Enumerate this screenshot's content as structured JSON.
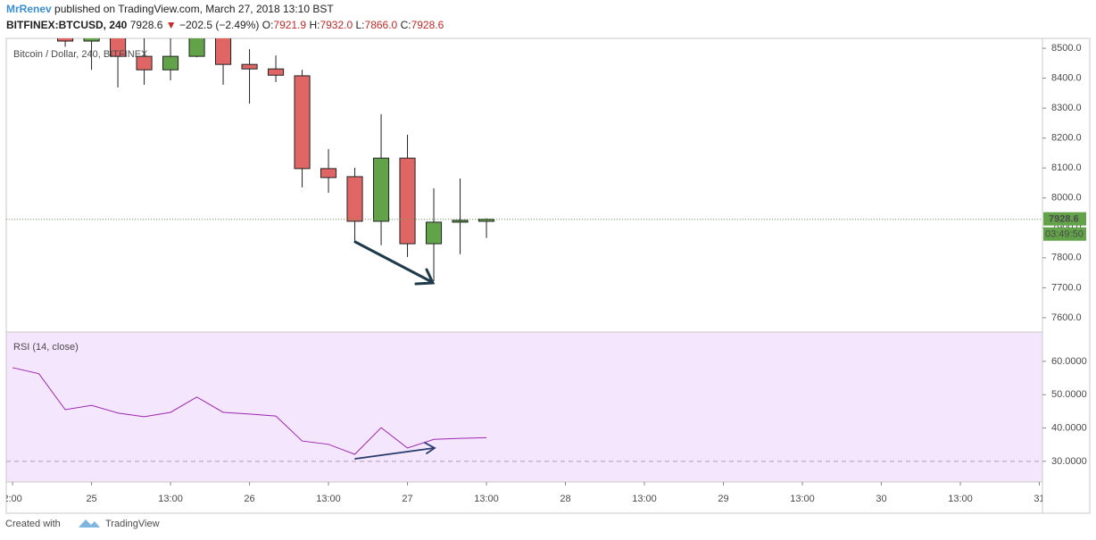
{
  "header": {
    "author": "MrRenev",
    "published": "published on TradingView.com, March 27, 2018 13:10 BST",
    "symbol": "BITFINEX:BTCUSD, 240",
    "last": "7928.6",
    "direction": "▼",
    "change": "−202.5 (−2.49%)",
    "open_label": "O:",
    "open": "7921.9",
    "high_label": "H:",
    "high": "7932.0",
    "low_label": "L:",
    "low": "7866.0",
    "close_label": "C:",
    "close": "7928.6"
  },
  "footer": {
    "created": "Created with",
    "brand": "TradingView"
  },
  "chart_data": [
    {
      "type": "candlestick",
      "title": "Bitcoin / Dollar, 240, BITFINEX",
      "x": [
        0,
        1,
        2,
        3,
        4,
        5,
        6,
        7,
        8,
        9,
        10,
        11,
        12,
        13,
        14,
        15,
        16
      ],
      "open": [
        8560,
        8524,
        8545,
        8473,
        8428,
        8473,
        8540,
        8446,
        8431,
        8408,
        8098,
        8071,
        7922,
        8133,
        7847,
        7919,
        7921.9
      ],
      "high": [
        8590,
        8600,
        8600,
        8533,
        8540,
        8560,
        8570,
        8497,
        8476,
        8428,
        8163,
        8101,
        8280,
        8211,
        8032,
        8065,
        7932
      ],
      "low": [
        8505,
        8428,
        8369,
        8378,
        8393,
        8470,
        8378,
        8315,
        8387,
        8035,
        8017,
        7850,
        7842,
        7803,
        7722,
        7812,
        7866
      ],
      "close": [
        8524,
        8560,
        8473,
        8428,
        8473,
        8540,
        8446,
        8431,
        8410,
        8098,
        8068,
        7922,
        8133,
        7847,
        7919,
        7925,
        7928.6
      ],
      "up_color": "#62a34a",
      "down_color": "#e06666",
      "countdown": "03:49:50",
      "xlim": [
        -2.24,
        37.12
      ],
      "xticks": [
        {
          "value": -2,
          "label": "2:00"
        },
        {
          "value": 1,
          "label": "25"
        },
        {
          "value": 4,
          "label": "13:00"
        },
        {
          "value": 7,
          "label": "26"
        },
        {
          "value": 10,
          "label": "13:00"
        },
        {
          "value": 13,
          "label": "27"
        },
        {
          "value": 16,
          "label": "13:00"
        },
        {
          "value": 19,
          "label": "28"
        },
        {
          "value": 22,
          "label": "13:00"
        },
        {
          "value": 25,
          "label": "29"
        },
        {
          "value": 28,
          "label": "13:00"
        },
        {
          "value": 31,
          "label": "30"
        },
        {
          "value": 34,
          "label": "13:00"
        },
        {
          "value": 37,
          "label": "31"
        }
      ],
      "ylim": [
        7552,
        8533
      ],
      "yticks": [
        {
          "value": 7600,
          "label": "7600.0"
        },
        {
          "value": 7700,
          "label": "7700.0"
        },
        {
          "value": 7800,
          "label": "7800.0"
        },
        {
          "value": 7900,
          "label": "7900.0"
        },
        {
          "value": 8000,
          "label": "8000.0"
        },
        {
          "value": 8100,
          "label": "8100.0"
        },
        {
          "value": 8200,
          "label": "8200.0"
        },
        {
          "value": 8300,
          "label": "8300.0"
        },
        {
          "value": 8400,
          "label": "8400.0"
        },
        {
          "value": 8500,
          "label": "8500.0"
        }
      ]
    },
    {
      "type": "line",
      "title": "RSI (14, close)",
      "x": [
        -2,
        -1,
        0,
        1,
        2,
        3,
        4,
        5,
        6,
        7,
        8,
        9,
        10,
        11,
        12,
        13,
        14,
        15,
        16
      ],
      "values": [
        58.1,
        56.3,
        45.5,
        46.8,
        44.5,
        43.4,
        44.7,
        49.3,
        44.7,
        44.2,
        43.6,
        36.1,
        35.1,
        32.1,
        40.1,
        34.0,
        36.6,
        36.9,
        37.1
      ],
      "color": "#9c27b0",
      "xlim": [
        -2.24,
        37.12
      ],
      "ylim": [
        23.8,
        68.8
      ],
      "yticks": [
        {
          "value": 30,
          "label": "30.0000"
        },
        {
          "value": 40,
          "label": "40.0000"
        },
        {
          "value": 50,
          "label": "50.0000"
        },
        {
          "value": 60,
          "label": "60.0000"
        }
      ]
    }
  ]
}
